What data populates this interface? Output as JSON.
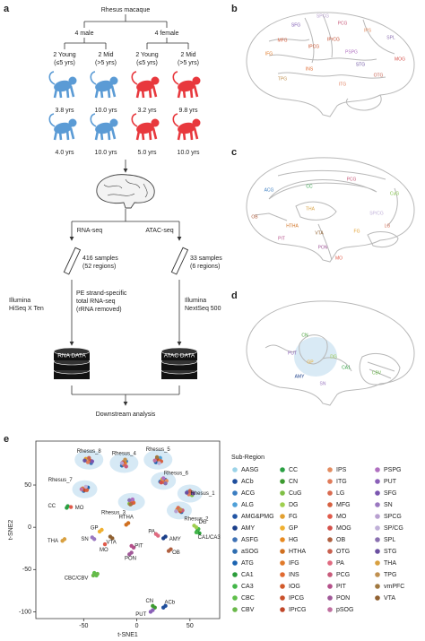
{
  "panel_labels": [
    "a",
    "b",
    "c",
    "d",
    "e"
  ],
  "panel_a": {
    "species": "Rhesus macaque",
    "groups": [
      "4 male",
      "4 female"
    ],
    "subgroups": [
      [
        "2 Young",
        "(≤5 yrs)"
      ],
      [
        "2 Mid",
        "(>5 yrs)"
      ],
      [
        "2 Young",
        "(≤5 yrs)"
      ],
      [
        "2 Mid",
        "(>5 yrs)"
      ]
    ],
    "ages": [
      [
        "3.8 yrs",
        "4.0 yrs"
      ],
      [
        "10.0 yrs",
        "10.0 yrs"
      ],
      [
        "3.2 yrs",
        "5.0 yrs"
      ],
      [
        "9.8 yrs",
        "10.0 yrs"
      ]
    ],
    "assays": [
      "RNA-seq",
      "ATAC-seq"
    ],
    "rna_samples": [
      "416 samples",
      "(52 regions)"
    ],
    "atac_samples": [
      "33 samples",
      "(6 regions)"
    ],
    "rna_platform": [
      "Illumina",
      "HiSeq X Ten"
    ],
    "rna_protocol": [
      "PE strand-specific",
      "total RNA-seq",
      "(rRNA removed)"
    ],
    "atac_platform": [
      "Illumina",
      "NextSeq 500"
    ],
    "rna_db": "RNA DATA",
    "atac_db": "ATAC DATA",
    "downstream": "Downstream analysis"
  },
  "panel_b": {
    "regions": [
      "SPCG",
      "PCG",
      "SFG",
      "IPS",
      "MFG",
      "IPrCG",
      "SPL",
      "IFG",
      "IPCG",
      "PSPG",
      "STG",
      "MOG",
      "ITG",
      "OTG",
      "TPG",
      "INS"
    ]
  },
  "panel_c": {
    "regions": [
      "ACG",
      "CC",
      "PCG",
      "CuG",
      "SP/CG",
      "LG",
      "OB",
      "THA",
      "HTHA",
      "VTA",
      "PIT",
      "PON",
      "MO",
      "FG"
    ]
  },
  "panel_d": {
    "regions": [
      "CN",
      "PUT",
      "GP",
      "AMY",
      "DG",
      "CA1",
      "SN",
      "CBV"
    ]
  },
  "chart_data": {
    "type": "scatter",
    "xlabel": "t-SNE1",
    "ylabel": "t-SNE2",
    "xlim": [
      -95,
      78
    ],
    "ylim": [
      -108,
      102
    ],
    "xticks": [
      -50,
      0,
      50
    ],
    "yticks": [
      50,
      0,
      -50,
      -100
    ],
    "legend_title": "Sub-Region",
    "cluster_labels": [
      "Rhesus_8",
      "Rhesus_4",
      "Rhesus_5",
      "Rhesus_6",
      "Rhesus_7",
      "Rhesus_1",
      "Rhesus_3",
      "Rhesus_2",
      "CC",
      "MO",
      "HTHA",
      "DG",
      "CA1/CA3",
      "GP",
      "SN",
      "VTA",
      "PA",
      "AMY",
      "THA",
      "MO",
      "PIT",
      "PON",
      "OB",
      "CBC/CBV",
      "CN",
      "ACb",
      "PUT"
    ],
    "series": [
      {
        "name": "AASG",
        "color": "#9bd3e8",
        "x": [
          -47,
          40
        ],
        "values": [
          80,
          22
        ]
      },
      {
        "name": "ACb",
        "color": "#1f4e9c",
        "x": [
          25,
          27
        ],
        "values": [
          -95,
          -93
        ]
      },
      {
        "name": "ACG",
        "color": "#3a7dc1",
        "x": [
          -10,
          -50
        ],
        "values": [
          78,
          43
        ]
      },
      {
        "name": "ALG",
        "color": "#4fa0d8",
        "x": [
          22,
          48
        ],
        "values": [
          82,
          42
        ]
      },
      {
        "name": "AMG&PMG",
        "color": "#2255a4",
        "x": [
          27,
          -4
        ],
        "values": [
          56,
          32
        ]
      },
      {
        "name": "AMY",
        "color": "#1b3f8a",
        "x": [
          25,
          27
        ],
        "values": [
          -13,
          -11
        ]
      },
      {
        "name": "ASFG",
        "color": "#3f72b5",
        "x": [
          -43,
          22
        ],
        "values": [
          76,
          54
        ]
      },
      {
        "name": "aSOG",
        "color": "#2e6db0",
        "x": [
          -14,
          42
        ],
        "values": [
          73,
          18
        ]
      },
      {
        "name": "ATG",
        "color": "#1b63b0",
        "x": [
          18,
          -46
        ],
        "values": [
          77,
          47
        ]
      },
      {
        "name": "CA1",
        "color": "#2a9c3a",
        "x": [
          57,
          59
        ],
        "values": [
          -4,
          -7
        ]
      },
      {
        "name": "CA3",
        "color": "#43b649",
        "x": [
          56,
          58
        ],
        "values": [
          -6,
          -2
        ]
      },
      {
        "name": "CBC",
        "color": "#5fbf4a",
        "x": [
          -40,
          -38
        ],
        "values": [
          -54,
          -57
        ]
      },
      {
        "name": "CBV",
        "color": "#6ab84a",
        "x": [
          -41,
          -37
        ],
        "values": [
          -57,
          -55
        ]
      },
      {
        "name": "CC",
        "color": "#2aa043",
        "x": [
          -65,
          -66
        ],
        "values": [
          25,
          23
        ]
      },
      {
        "name": "CN",
        "color": "#3c9a2f",
        "x": [
          15,
          17
        ],
        "values": [
          -93,
          -95
        ]
      },
      {
        "name": "CuG",
        "color": "#7fbf45",
        "x": [
          52,
          -7
        ],
        "values": [
          38,
          28
        ]
      },
      {
        "name": "DG",
        "color": "#9fcf4f",
        "x": [
          54,
          56
        ],
        "values": [
          2,
          0
        ]
      },
      {
        "name": "FG",
        "color": "#e2a030",
        "x": [
          -48,
          24
        ],
        "values": [
          81,
          57
        ]
      },
      {
        "name": "GP",
        "color": "#f0b030",
        "x": [
          -33,
          -35
        ],
        "values": [
          -3,
          -5
        ]
      },
      {
        "name": "HG",
        "color": "#e88a20",
        "x": [
          -11,
          38
        ],
        "values": [
          76,
          21
        ]
      },
      {
        "name": "HTHA",
        "color": "#d07020",
        "x": [
          -8,
          -10
        ],
        "values": [
          5,
          3
        ]
      },
      {
        "name": "IFG",
        "color": "#e07a2a",
        "x": [
          21,
          -51
        ],
        "values": [
          79,
          46
        ]
      },
      {
        "name": "INS",
        "color": "#e06a30",
        "x": [
          26,
          -3
        ],
        "values": [
          53,
          29
        ]
      },
      {
        "name": "IOG",
        "color": "#d25a2a",
        "x": [
          -44,
          51
        ],
        "values": [
          79,
          41
        ]
      },
      {
        "name": "IPCG",
        "color": "#c9502a",
        "x": [
          -13,
          41
        ],
        "values": [
          77,
          19
        ]
      },
      {
        "name": "IPrCG",
        "color": "#c04628",
        "x": [
          19,
          -49
        ],
        "values": [
          81,
          44
        ]
      },
      {
        "name": "IPS",
        "color": "#e38c60",
        "x": [
          28,
          -6
        ],
        "values": [
          55,
          31
        ]
      },
      {
        "name": "ITG",
        "color": "#e07b5a",
        "x": [
          -46,
          49
        ],
        "values": [
          77,
          39
        ]
      },
      {
        "name": "LG",
        "color": "#d96b50",
        "x": [
          -12,
          39
        ],
        "values": [
          74,
          23
        ]
      },
      {
        "name": "MFG",
        "color": "#d66040",
        "x": [
          23,
          -47
        ],
        "values": [
          78,
          44
        ]
      },
      {
        "name": "MO",
        "color": "#e05a4a",
        "x": [
          -62,
          -30
        ],
        "values": [
          24,
          -20
        ]
      },
      {
        "name": "MOG",
        "color": "#d4504a",
        "x": [
          23,
          -5
        ],
        "values": [
          53,
          28
        ]
      },
      {
        "name": "OB",
        "color": "#b06040",
        "x": [
          30,
          32
        ],
        "values": [
          -28,
          -26
        ]
      },
      {
        "name": "OTG",
        "color": "#c8604f",
        "x": [
          -45,
          50
        ],
        "values": [
          82,
          43
        ]
      },
      {
        "name": "PA",
        "color": "#e06a80",
        "x": [
          18,
          20
        ],
        "values": [
          -8,
          -10
        ]
      },
      {
        "name": "PCG",
        "color": "#c85a7a",
        "x": [
          -10,
          43
        ],
        "values": [
          72,
          20
        ]
      },
      {
        "name": "PIT",
        "color": "#b4508a",
        "x": [
          -5,
          -3
        ],
        "values": [
          -22,
          -24
        ]
      },
      {
        "name": "PON",
        "color": "#a05898",
        "x": [
          -5,
          -7
        ],
        "values": [
          -30,
          -32
        ]
      },
      {
        "name": "pSOG",
        "color": "#c070a0",
        "x": [
          17,
          -52
        ],
        "values": [
          79,
          45
        ]
      },
      {
        "name": "PSPG",
        "color": "#b070c0",
        "x": [
          25,
          -4
        ],
        "values": [
          58,
          33
        ]
      },
      {
        "name": "PUT",
        "color": "#8a60b8",
        "x": [
          13,
          15
        ],
        "values": [
          -100,
          -98
        ]
      },
      {
        "name": "SFG",
        "color": "#7a55b0",
        "x": [
          -42,
          53
        ],
        "values": [
          78,
          40
        ]
      },
      {
        "name": "SN",
        "color": "#9a78c0",
        "x": [
          -40,
          -42
        ],
        "values": [
          -14,
          -12
        ]
      },
      {
        "name": "SPCG",
        "color": "#b8a0d0",
        "x": [
          -14,
          37
        ],
        "values": [
          76,
          19
        ]
      },
      {
        "name": "SP/CG",
        "color": "#c0b0d8",
        "x": [
          21,
          -48
        ],
        "values": [
          76,
          48
        ]
      },
      {
        "name": "SPL",
        "color": "#8a70b0",
        "x": [
          27,
          -7
        ],
        "values": [
          52,
          32
        ]
      },
      {
        "name": "STG",
        "color": "#6a50a0",
        "x": [
          -49,
          47
        ],
        "values": [
          79,
          41
        ]
      },
      {
        "name": "THA",
        "color": "#d8a040",
        "x": [
          -70,
          -68
        ],
        "values": [
          -16,
          -14
        ]
      },
      {
        "name": "TPG",
        "color": "#c09050",
        "x": [
          -11,
          41
        ],
        "values": [
          80,
          21
        ]
      },
      {
        "name": "vmPFC",
        "color": "#a07840",
        "x": [
          19,
          -6
        ],
        "values": [
          83,
          27
        ]
      },
      {
        "name": "VTA",
        "color": "#906030",
        "x": [
          -25,
          -23
        ],
        "values": [
          -11,
          -13
        ]
      }
    ]
  }
}
